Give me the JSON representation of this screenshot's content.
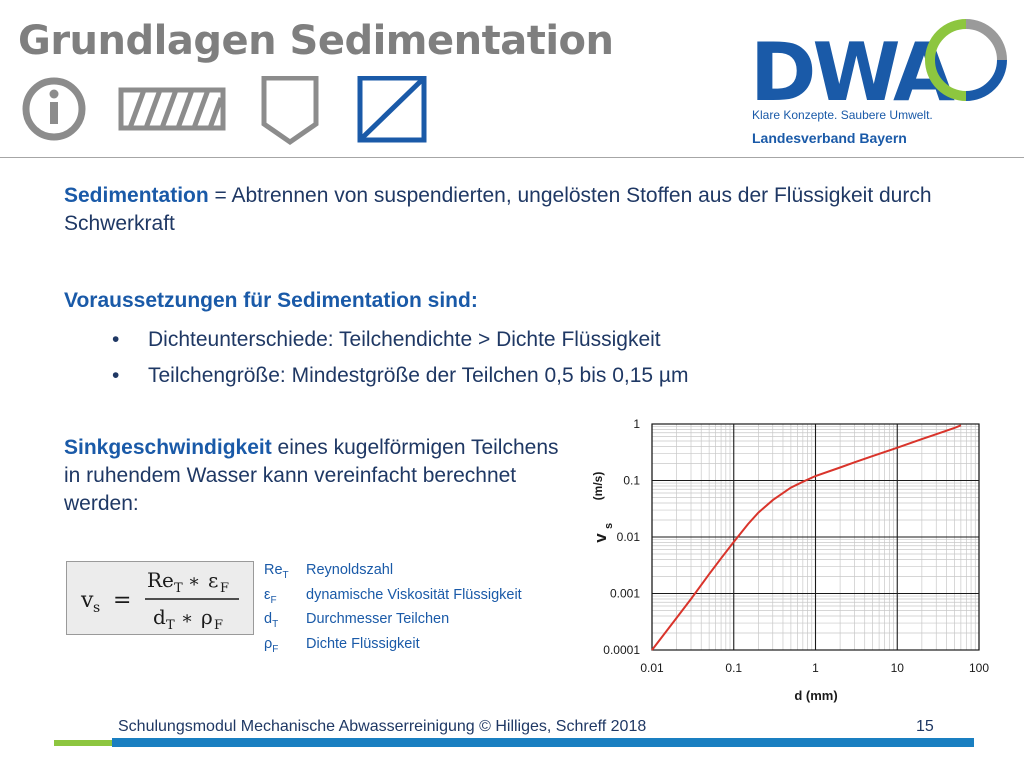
{
  "header": {
    "title": "Grundlagen Sedimentation",
    "icons": [
      "info-icon",
      "hatched-rectangle-icon",
      "shield-icon",
      "diagonal-square-icon"
    ]
  },
  "logo": {
    "brand": "DWA",
    "tagline": "Klare Konzepte. Saubere Umwelt.",
    "subtitle": "Landesverband Bayern",
    "colors": {
      "blue": "#1a5aa8",
      "green": "#8dc63f",
      "gray": "#9a9a9a"
    }
  },
  "content": {
    "p1": {
      "keyword": "Sedimentation",
      "text": " = Abtrennen von suspendierten, ungelösten Stoffen aus der Flüssigkeit durch Schwerkraft"
    },
    "p2": {
      "heading": "Voraussetzungen für Sedimentation sind:"
    },
    "bullets": [
      "Dichteunterschiede: Teilchendichte > Dichte Flüssigkeit",
      "Teilchengröße: Mindestgröße der Teilchen 0,5 bis 0,15 µm"
    ],
    "p3": {
      "keyword": "Sinkgeschwindigkeit",
      "text": " eines kugelförmigen Teilchens in ruhendem Wasser kann vereinfacht berechnet werden:"
    }
  },
  "formula": {
    "lhs": "v",
    "lhs_sub": "s",
    "equals": "=",
    "num_a": "Re",
    "num_a_sub": "T",
    "num_op": "∗",
    "num_b": "ε",
    "num_b_sub": "F",
    "den_a": "d",
    "den_a_sub": "T",
    "den_op": "∗",
    "den_b": "ρ",
    "den_b_sub": "F"
  },
  "legend": [
    {
      "sym": "Re",
      "sub": "T",
      "desc": "Reynoldszahl"
    },
    {
      "sym": "ε",
      "sub": "F",
      "desc": "dynamische Viskosität Flüssigkeit"
    },
    {
      "sym": "d",
      "sub": "T",
      "desc": "Durchmesser Teilchen"
    },
    {
      "sym": "ρ",
      "sub": "F",
      "desc": "Dichte Flüssigkeit"
    }
  ],
  "chart_data": {
    "type": "line",
    "x_scale": "log",
    "y_scale": "log",
    "xlim": [
      0.01,
      100
    ],
    "ylim": [
      0.0001,
      1
    ],
    "x_ticks": [
      "0.01",
      "0.1",
      "1",
      "10",
      "100"
    ],
    "y_ticks": [
      "0.0001",
      "0.001",
      "0.01",
      "0.1",
      "1"
    ],
    "xlabel": "d (mm)",
    "ylabel_main": "v",
    "ylabel_sub": "s",
    "ylabel_unit": "(m/s)",
    "grid": true,
    "line_color": "#d9342b",
    "series": [
      {
        "x": [
          0.01,
          0.02,
          0.03,
          0.05,
          0.07,
          0.1,
          0.15,
          0.2,
          0.3,
          0.5,
          0.7,
          1,
          2,
          3,
          5,
          10,
          20,
          30,
          50,
          60
        ],
        "y": [
          0.0001,
          0.00037,
          0.0008,
          0.0022,
          0.0042,
          0.0082,
          0.017,
          0.027,
          0.045,
          0.075,
          0.095,
          0.12,
          0.17,
          0.21,
          0.27,
          0.38,
          0.54,
          0.66,
          0.85,
          0.95
        ]
      }
    ]
  },
  "footer": {
    "text": "Schulungsmodul Mechanische Abwasserreinigung © Hilliges, Schreff  2018",
    "page": "15"
  }
}
